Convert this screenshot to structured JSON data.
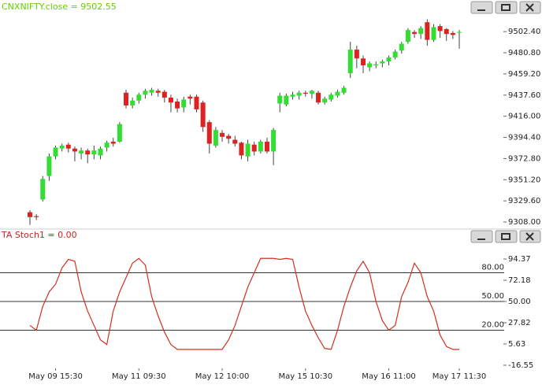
{
  "chart_data": [
    {
      "type": "candlestick",
      "title": "CNXNIFTY.close = 9502.55",
      "up_color": "#33dd33",
      "down_color": "#dd2222",
      "ylim": [
        9300,
        9517
      ],
      "yticks": [
        {
          "value": 9308,
          "label": "9308.00"
        },
        {
          "value": 9329.6,
          "label": "9329.60"
        },
        {
          "value": 9351.2,
          "label": "9351.20"
        },
        {
          "value": 9372.8,
          "label": "9372.80"
        },
        {
          "value": 9394.4,
          "label": "9394.40"
        },
        {
          "value": 9416,
          "label": "9416.00"
        },
        {
          "value": 9437.6,
          "label": "9437.60"
        },
        {
          "value": 9459.2,
          "label": "9459.20"
        },
        {
          "value": 9480.8,
          "label": "9480.80"
        },
        {
          "value": 9502.4,
          "label": "9502.40"
        }
      ],
      "open": [
        9318,
        9314,
        9331,
        9355,
        9375,
        9383,
        9387,
        9383,
        9378,
        9381,
        9377,
        9376,
        9384,
        9390,
        9390,
        9440,
        9427,
        9432,
        9438,
        9440,
        9442,
        9441,
        9435,
        9431,
        9425,
        9436,
        9436,
        9430,
        9410,
        9386,
        9399,
        9396,
        9392,
        9389,
        9375,
        9387,
        9380,
        9390,
        9380,
        9429,
        9428,
        9436,
        9437,
        9440,
        9439,
        9440,
        9430,
        9433,
        9437,
        9440,
        9460,
        9484,
        9475,
        9466,
        9468,
        9470,
        9472,
        9476,
        9483,
        9492,
        9502,
        9500,
        9512,
        9494,
        9508,
        9505,
        9501,
        9502
      ],
      "high": [
        9320,
        9316,
        9355,
        9378,
        9386,
        9388,
        9389,
        9385,
        9384,
        9383,
        9386,
        9385,
        9391,
        9394,
        9410,
        9443,
        9435,
        9440,
        9444,
        9445,
        9444,
        9443,
        9438,
        9434,
        9436,
        9438,
        9438,
        9432,
        9412,
        9405,
        9402,
        9398,
        9396,
        9390,
        9392,
        9390,
        9392,
        9394,
        9404,
        9440,
        9439,
        9441,
        9442,
        9442,
        9443,
        9442,
        9436,
        9440,
        9443,
        9447,
        9492,
        9488,
        9478,
        9472,
        9472,
        9474,
        9478,
        9484,
        9492,
        9506,
        9504,
        9508,
        9515,
        9510,
        9510,
        9506,
        9503,
        9504
      ],
      "low": [
        9305,
        9310,
        9329,
        9350,
        9372,
        9380,
        9379,
        9370,
        9372,
        9368,
        9372,
        9372,
        9380,
        9385,
        9389,
        9424,
        9424,
        9429,
        9434,
        9437,
        9436,
        9430,
        9420,
        9420,
        9420,
        9428,
        9420,
        9400,
        9378,
        9384,
        9390,
        9388,
        9385,
        9372,
        9370,
        9376,
        9378,
        9378,
        9366,
        9420,
        9426,
        9433,
        9433,
        9436,
        9434,
        9428,
        9428,
        9431,
        9435,
        9438,
        9455,
        9465,
        9460,
        9462,
        9465,
        9466,
        9468,
        9474,
        9480,
        9490,
        9496,
        9495,
        9488,
        9492,
        9496,
        9493,
        9495,
        9485
      ],
      "close": [
        9313,
        9313,
        9352,
        9375,
        9384,
        9386,
        9383,
        9380,
        9381,
        9377,
        9381,
        9383,
        9389,
        9388,
        9408,
        9427,
        9432,
        9438,
        9442,
        9443,
        9440,
        9435,
        9430,
        9424,
        9433,
        9434,
        9423,
        9405,
        9388,
        9402,
        9395,
        9393,
        9388,
        9376,
        9388,
        9380,
        9390,
        9380,
        9402,
        9437,
        9437,
        9438,
        9440,
        9439,
        9442,
        9430,
        9434,
        9438,
        9441,
        9445,
        9484,
        9475,
        9468,
        9470,
        9469,
        9472,
        9476,
        9482,
        9490,
        9504,
        9500,
        9506,
        9494,
        9507,
        9503,
        9500,
        9499,
        9502
      ]
    },
    {
      "type": "line",
      "title": "TA Stoch1 = 0.00",
      "color": "#d03020",
      "categories": [
        null,
        null,
        null,
        null,
        "May 09 15:30",
        null,
        null,
        null,
        null,
        null,
        null,
        null,
        null,
        null,
        null,
        null,
        null,
        "May 11 09:30",
        null,
        null,
        null,
        null,
        null,
        null,
        null,
        null,
        null,
        null,
        null,
        null,
        "May 12 10:00",
        null,
        null,
        null,
        null,
        null,
        null,
        null,
        null,
        null,
        null,
        null,
        null,
        "May 15 10:30",
        null,
        null,
        null,
        null,
        null,
        null,
        null,
        null,
        null,
        null,
        null,
        null,
        "May 16 11:00",
        null,
        null,
        null,
        null,
        null,
        null,
        null,
        null,
        null,
        null,
        "May 17 11:30"
      ],
      "values": [
        25,
        20,
        45,
        60,
        68,
        85,
        94,
        92,
        60,
        40,
        25,
        10,
        5,
        40,
        60,
        75,
        90,
        95,
        88,
        55,
        35,
        18,
        5,
        0,
        0,
        0,
        0,
        0,
        0,
        0,
        0,
        10,
        25,
        45,
        65,
        80,
        95,
        95,
        95,
        94,
        95,
        94,
        65,
        40,
        25,
        12,
        1,
        0,
        20,
        45,
        65,
        82,
        92,
        80,
        50,
        30,
        20,
        25,
        55,
        70,
        90,
        80,
        55,
        40,
        15,
        3,
        0,
        0
      ],
      "ylim": [
        -20,
        110
      ],
      "yticks": [
        -16.55,
        5.63,
        27.82,
        {
          "value": 50,
          "label": "50.00"
        },
        72.18,
        94.37
      ],
      "reference_lines": [
        {
          "value": 80,
          "label": "80.00"
        },
        {
          "value": 50,
          "label": "50.00"
        },
        {
          "value": 20,
          "label": "20.00"
        }
      ]
    }
  ]
}
